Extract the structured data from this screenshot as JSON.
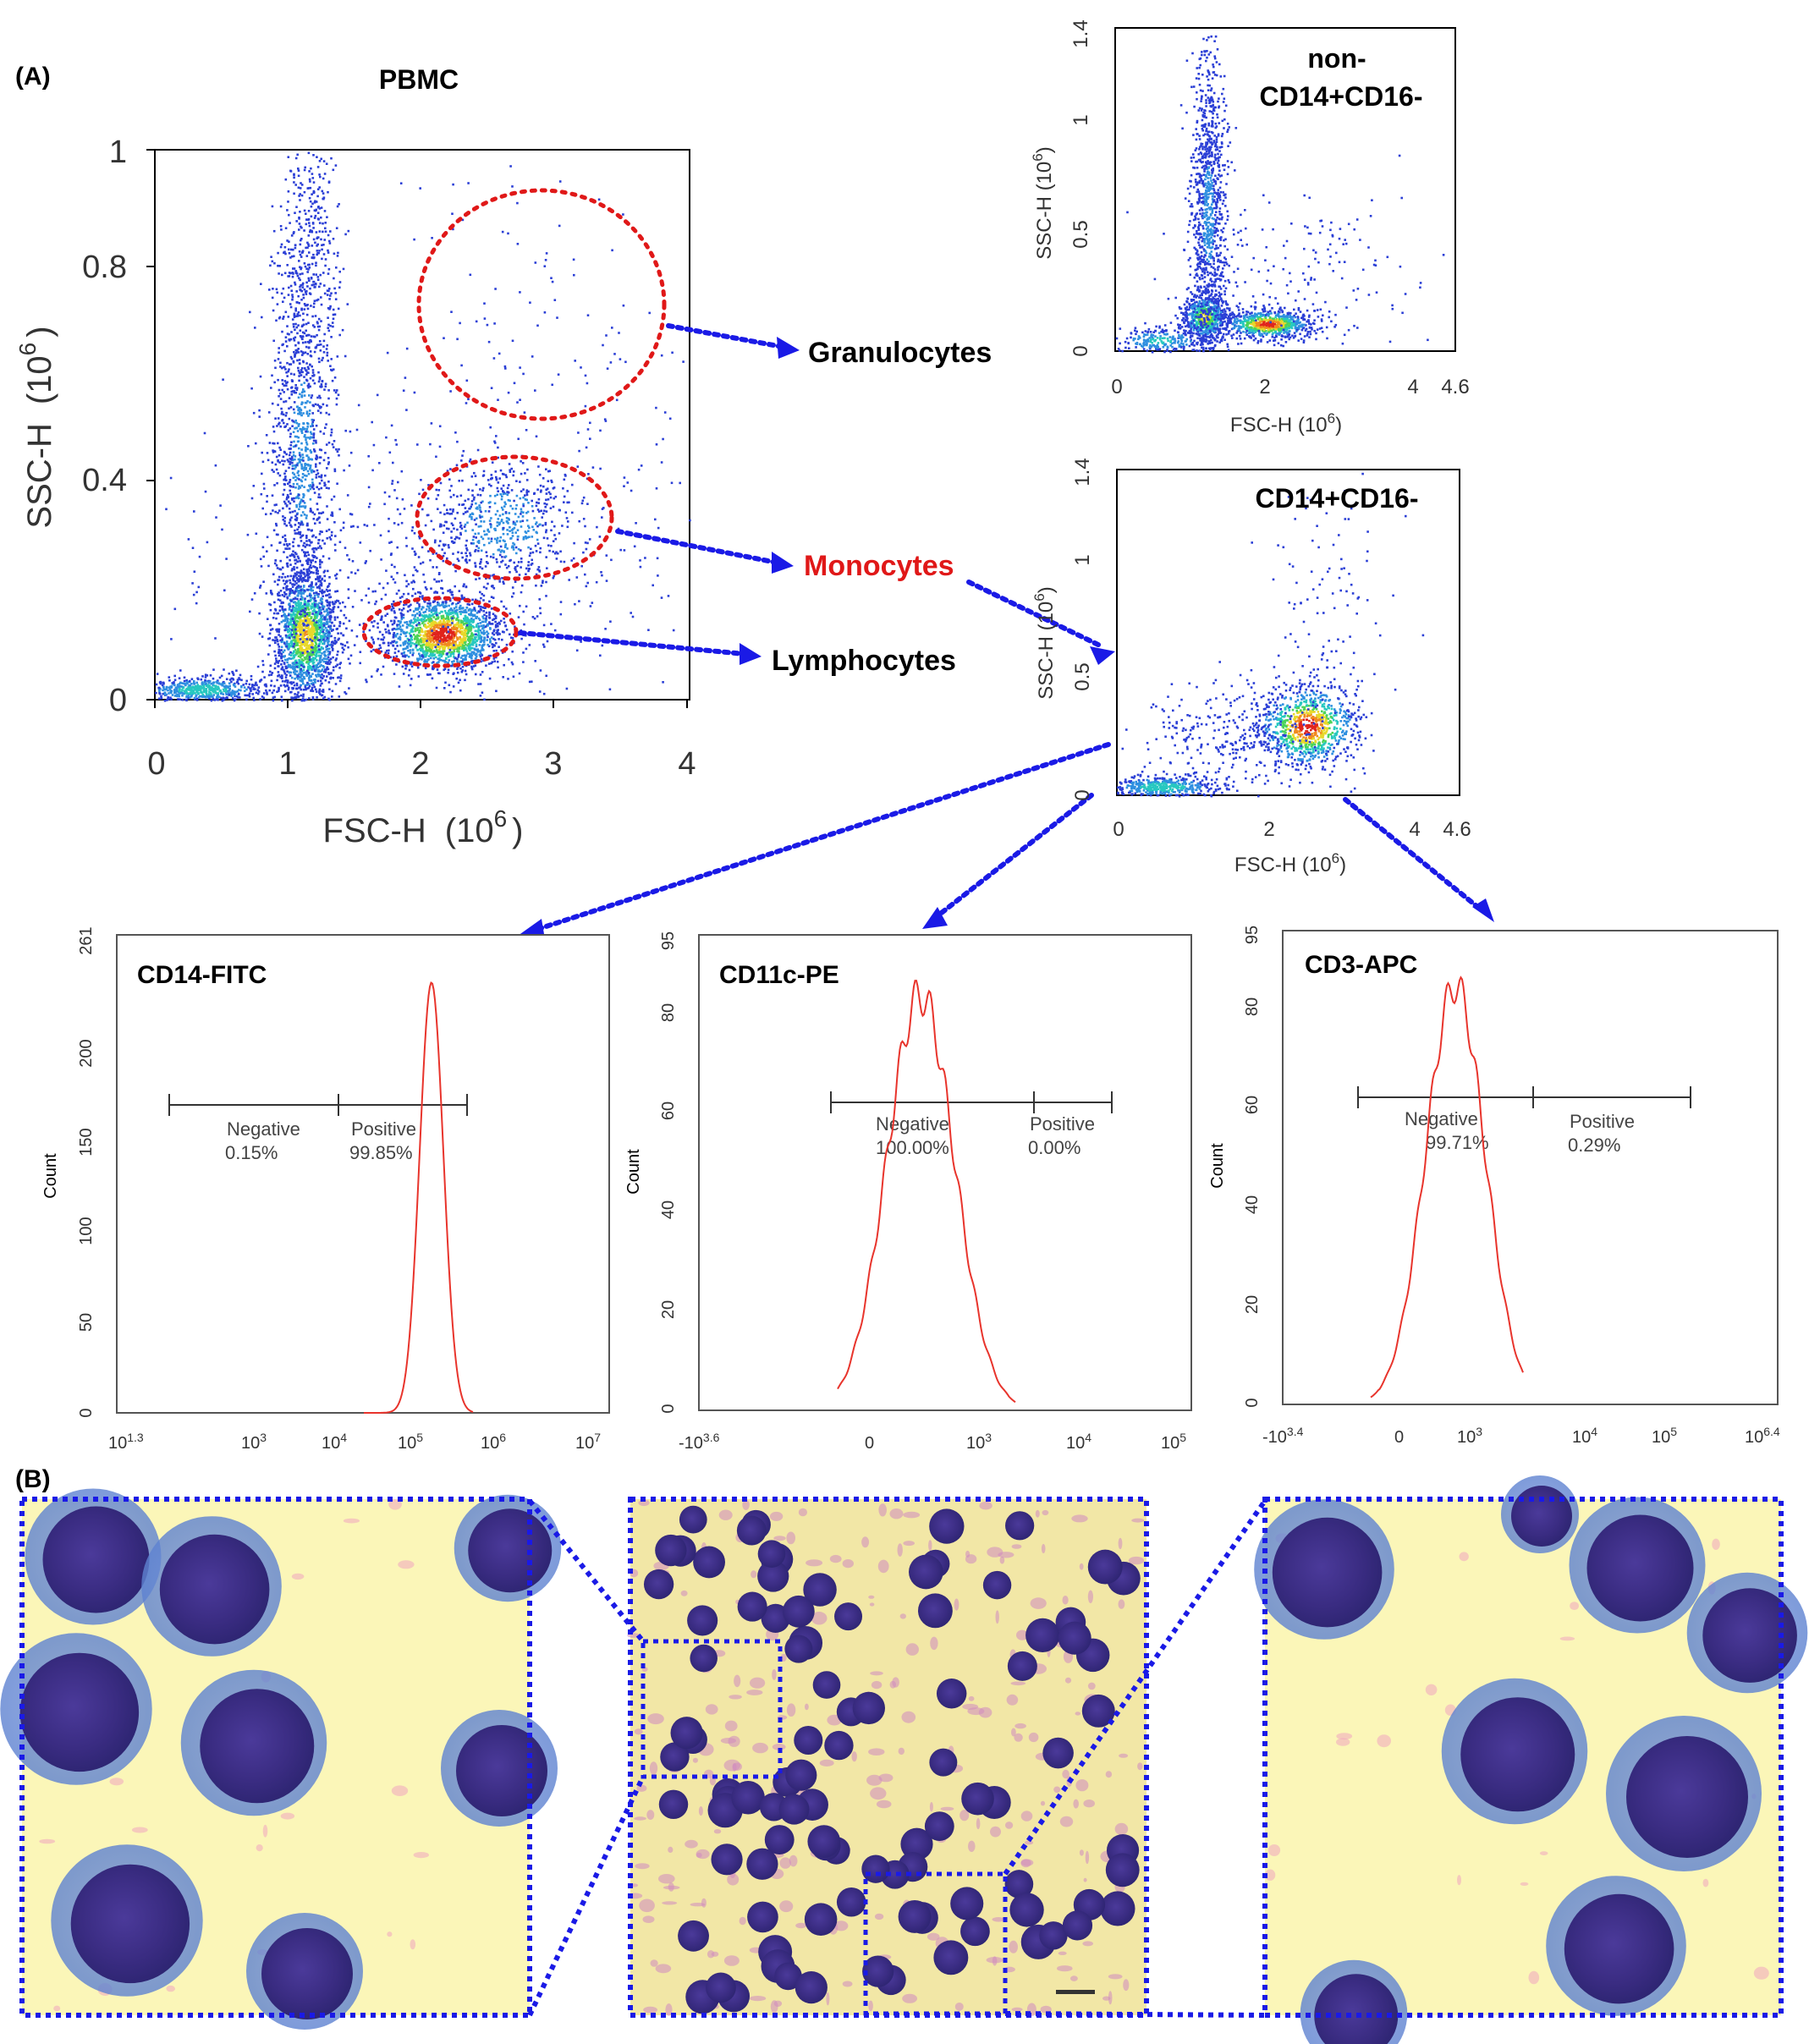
{
  "figure": {
    "panel_a_label": "(A)",
    "panel_b_label": "(B)",
    "arrow_color": "#1a1ae6",
    "gate_color": "#e01818"
  },
  "main_scatter": {
    "title": "PBMC",
    "xlabel_text": "FSC-H",
    "xlabel_exp": "(10",
    "xlabel_sup": "6",
    "xlabel_close": ")",
    "ylabel_text": "SSC-H",
    "ylabel_exp": "(10",
    "ylabel_sup": "6",
    "ylabel_close": ")",
    "x_ticks": [
      "0",
      "1",
      "2",
      "3",
      "4"
    ],
    "y_ticks": [
      "0",
      "0.4",
      "0.8",
      "1"
    ],
    "gates": {
      "granulocytes": "Granulocytes",
      "monocytes": "Monocytes",
      "lymphocytes": "Lymphocytes"
    }
  },
  "sub_scatter_1": {
    "title_line1": "non-",
    "title_line2": "CD14+CD16-",
    "xlabel": "FSC-H  (10",
    "xlabel_sup": "6",
    "xlabel_close": ")",
    "ylabel": "SSC-H  (10",
    "ylabel_sup": "6",
    "ylabel_close": ")",
    "x_ticks": [
      "0",
      "2",
      "4",
      "4.6"
    ],
    "y_ticks": [
      "0",
      "0.5",
      "1",
      "1.4"
    ]
  },
  "sub_scatter_2": {
    "title": "CD14+CD16-",
    "xlabel": "FSC-H  (10",
    "xlabel_sup": "6",
    "xlabel_close": ")",
    "ylabel": "SSC-H  (10",
    "ylabel_sup": "6",
    "ylabel_close": ")",
    "x_ticks": [
      "0",
      "2",
      "4",
      "4.6"
    ],
    "y_ticks": [
      "0",
      "0.5",
      "1",
      "1.4"
    ]
  },
  "histograms": {
    "cd14": {
      "title": "CD14-FITC",
      "ylabel": "Count",
      "y_ticks": [
        "0",
        "50",
        "100",
        "150",
        "200",
        "261"
      ],
      "x_ticks": [
        "10",
        "1.3",
        "10",
        "3",
        "10",
        "4",
        "10",
        "5",
        "10",
        "6",
        "10",
        "7"
      ],
      "neg_label": "Negative",
      "neg_pct": "0.15%",
      "pos_label": "Positive",
      "pos_pct": "99.85%"
    },
    "cd11c": {
      "title": "CD11c-PE",
      "ylabel": "Count",
      "y_ticks": [
        "0",
        "20",
        "40",
        "60",
        "80",
        "95"
      ],
      "x_ticks": [
        "-10",
        "3.6",
        "0",
        "10",
        "3",
        "10",
        "4",
        "10",
        "5"
      ],
      "neg_label": "Negative",
      "neg_pct": "100.00%",
      "pos_label": "Positive",
      "pos_pct": "0.00%"
    },
    "cd3": {
      "title": "CD3-APC",
      "ylabel": "Count",
      "y_ticks": [
        "0",
        "20",
        "40",
        "60",
        "80",
        "95"
      ],
      "x_ticks": [
        "-10",
        "3.4",
        "0",
        "10",
        "3",
        "10",
        "4",
        "10",
        "5",
        "10",
        "6.4"
      ],
      "neg_label": "Negative",
      "neg_pct": "99.71%",
      "pos_label": "Positive",
      "pos_pct": "0.29%"
    }
  },
  "chart_data": [
    {
      "type": "scatter",
      "title": "PBMC",
      "xlabel": "FSC-H (10^6)",
      "ylabel": "SSC-H (10^6)",
      "xlim": [
        0,
        4
      ],
      "ylim": [
        0,
        1
      ],
      "clusters": [
        {
          "name": "Granulocytes",
          "center": [
            2.9,
            0.72
          ],
          "spread": [
            0.45,
            0.2
          ]
        },
        {
          "name": "Monocytes",
          "center": [
            2.7,
            0.32
          ],
          "spread": [
            0.35,
            0.08
          ]
        },
        {
          "name": "Lymphocytes",
          "center": [
            2.1,
            0.12
          ],
          "spread": [
            0.2,
            0.04
          ]
        }
      ]
    },
    {
      "type": "scatter",
      "title": "non- CD14+CD16-",
      "xlabel": "FSC-H (10^6)",
      "ylabel": "SSC-H (10^6)",
      "xlim": [
        0,
        4.6
      ],
      "ylim": [
        0,
        1.4
      ]
    },
    {
      "type": "scatter",
      "title": "CD14+CD16-",
      "xlabel": "FSC-H (10^6)",
      "ylabel": "SSC-H (10^6)",
      "xlim": [
        0,
        4.6
      ],
      "ylim": [
        0,
        1.4
      ]
    },
    {
      "type": "line",
      "title": "CD14-FITC",
      "ylabel": "Count",
      "ylim": [
        0,
        261
      ],
      "gates": [
        {
          "name": "Negative",
          "percent": 0.15
        },
        {
          "name": "Positive",
          "percent": 99.85
        }
      ],
      "peak": {
        "x_log10": 5.2,
        "count": 235
      }
    },
    {
      "type": "line",
      "title": "CD11c-PE",
      "ylabel": "Count",
      "ylim": [
        0,
        95
      ],
      "gates": [
        {
          "name": "Negative",
          "percent": 100.0
        },
        {
          "name": "Positive",
          "percent": 0.0
        }
      ],
      "peak": {
        "count": 86
      }
    },
    {
      "type": "line",
      "title": "CD3-APC",
      "ylabel": "Count",
      "ylim": [
        0,
        95
      ],
      "gates": [
        {
          "name": "Negative",
          "percent": 99.71
        },
        {
          "name": "Positive",
          "percent": 0.29
        }
      ],
      "peak": {
        "count": 87
      }
    }
  ]
}
